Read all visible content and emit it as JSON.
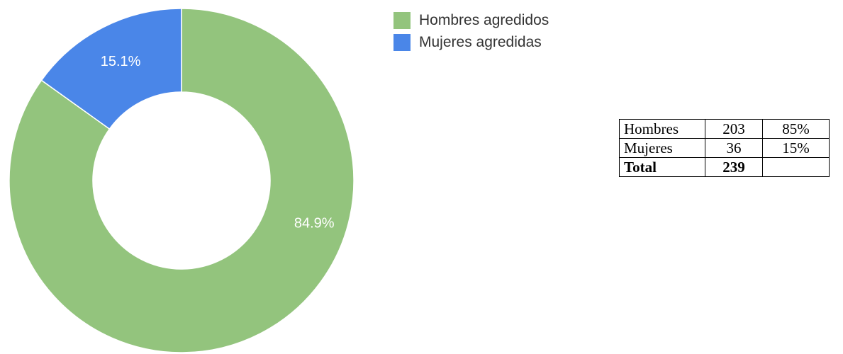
{
  "chart_data": {
    "type": "pie",
    "style": "donut",
    "categories": [
      "Hombres agredidos",
      "Mujeres agredidas"
    ],
    "values": [
      84.9,
      15.1
    ],
    "value_labels": [
      "84.9%",
      "15.1%"
    ],
    "colors": [
      "#93c47d",
      "#4a86e8"
    ],
    "legend_position": "right"
  },
  "legend": {
    "items": [
      {
        "label": "Hombres agredidos",
        "color": "#93c47d"
      },
      {
        "label": "Mujeres agredidas",
        "color": "#4a86e8"
      }
    ]
  },
  "table": {
    "rows": [
      {
        "label": "Hombres",
        "count": "203",
        "percent": "85%"
      },
      {
        "label": "Mujeres",
        "count": "36",
        "percent": "15%"
      },
      {
        "label": "Total",
        "count": "239",
        "percent": ""
      }
    ]
  }
}
